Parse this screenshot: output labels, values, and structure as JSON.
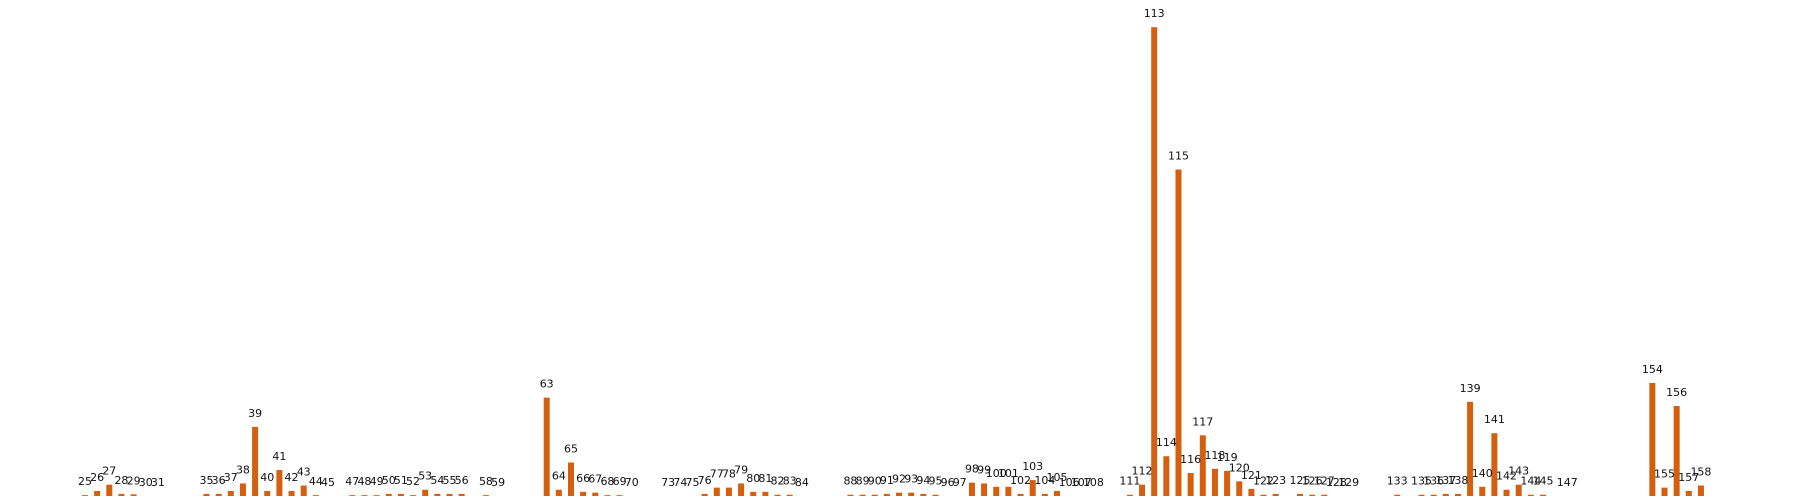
{
  "chart_data": {
    "type": "bar",
    "x": [
      25,
      26,
      27,
      28,
      29,
      30,
      31,
      35,
      36,
      37,
      38,
      39,
      40,
      41,
      42,
      43,
      44,
      45,
      47,
      48,
      49,
      50,
      51,
      52,
      53,
      54,
      55,
      56,
      58,
      59,
      63,
      64,
      65,
      66,
      67,
      68,
      69,
      70,
      73,
      74,
      75,
      76,
      77,
      78,
      79,
      80,
      81,
      82,
      83,
      84,
      88,
      89,
      90,
      91,
      92,
      93,
      94,
      95,
      96,
      97,
      98,
      99,
      100,
      101,
      102,
      103,
      104,
      105,
      106,
      107,
      108,
      111,
      112,
      113,
      114,
      115,
      116,
      117,
      118,
      119,
      120,
      121,
      122,
      123,
      125,
      126,
      127,
      128,
      129,
      133,
      135,
      136,
      137,
      138,
      139,
      140,
      141,
      142,
      143,
      144,
      145,
      147,
      154,
      155,
      156,
      157,
      158
    ],
    "labels": [
      "25",
      "26",
      "27",
      "28",
      "29",
      "30",
      "31",
      "35",
      "36",
      "37",
      "38",
      "39",
      "40",
      "41",
      "42",
      "43",
      "44",
      "45",
      "47",
      "48",
      "49",
      "50",
      "51",
      "52",
      "53",
      "54",
      "55",
      "56",
      "58",
      "59",
      "63",
      "64",
      "65",
      "66",
      "67",
      "68",
      "69",
      "70",
      "73",
      "74",
      "75",
      "76",
      "77",
      "78",
      "79",
      "80",
      "81",
      "82",
      "83",
      "84",
      "88",
      "89",
      "90",
      "91",
      "92",
      "93",
      "94",
      "95",
      "96",
      "97",
      "98",
      "99",
      "100",
      "101",
      "102",
      "103",
      "104",
      "105",
      "106",
      "107",
      "108",
      "111",
      "112",
      "113",
      "114",
      "115",
      "116",
      "117",
      "118",
      "119",
      "120",
      "121",
      "122",
      "123",
      "125",
      "126",
      "127",
      "128",
      "129",
      "133",
      "135",
      "136",
      "137",
      "138",
      "139",
      "140",
      "141",
      "142",
      "143",
      "144",
      "145",
      "147",
      "154",
      "155",
      "156",
      "157",
      "158"
    ],
    "values": [
      0.2,
      1.2,
      2.7,
      0.5,
      0.4,
      0,
      0,
      0.5,
      0.5,
      1.2,
      3.0,
      16.5,
      1.2,
      6.2,
      1.2,
      2.5,
      0.2,
      0,
      0.2,
      0.2,
      0.2,
      0.5,
      0.5,
      0.2,
      1.5,
      0.5,
      0.5,
      0.5,
      0.2,
      0,
      23.5,
      1.5,
      8.0,
      1.0,
      0.8,
      0.2,
      0.2,
      0,
      0,
      0,
      0,
      0.5,
      2.0,
      2.0,
      3.0,
      1.0,
      1.0,
      0.3,
      0.3,
      0,
      0.3,
      0.3,
      0.3,
      0.5,
      0.8,
      0.8,
      0.5,
      0.3,
      0,
      0,
      3.2,
      3.0,
      2.2,
      2.2,
      0.5,
      3.8,
      0.5,
      1.2,
      0,
      0,
      0,
      0.3,
      2.7,
      112.0,
      9.5,
      78.0,
      5.5,
      14.5,
      6.5,
      6.0,
      3.5,
      1.7,
      0.3,
      0.5,
      0.5,
      0.3,
      0.3,
      0,
      0,
      0.3,
      0.3,
      0.3,
      0.5,
      0.5,
      22.5,
      2.2,
      15.0,
      1.5,
      2.7,
      0.3,
      0.3,
      0,
      27.0,
      2.0,
      21.5,
      1.2,
      2.5
    ],
    "ylim": [
      0,
      113
    ],
    "grid": false,
    "legend": "none",
    "bar_color": "#d45f0e",
    "title": "",
    "xlabel": "",
    "ylabel": ""
  }
}
